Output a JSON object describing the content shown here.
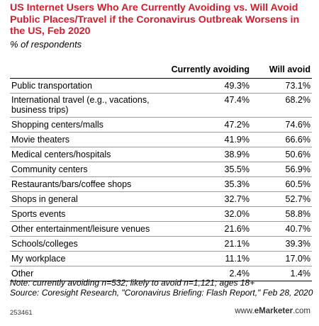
{
  "chart_data": {
    "type": "table",
    "title": "US Internet Users Who Are Currently Avoiding vs. Will Avoid Public Places/Travel if the Coronavirus Outbreak Worsens in the US, Feb 2020",
    "subtitle": "% of respondents",
    "columns": [
      "Currently avoiding",
      "Will avoid"
    ],
    "rows": [
      {
        "label": "Public transportation",
        "values": [
          "49.3%",
          "73.1%"
        ]
      },
      {
        "label": "International travel (e.g., vacations, business trips)",
        "values": [
          "47.4%",
          "68.2%"
        ]
      },
      {
        "label": "Shopping centers/malls",
        "values": [
          "47.2%",
          "74.6%"
        ]
      },
      {
        "label": "Movie theaters",
        "values": [
          "41.9%",
          "66.6%"
        ]
      },
      {
        "label": "Medical centers/hospitals",
        "values": [
          "38.9%",
          "50.6%"
        ]
      },
      {
        "label": "Community centers",
        "values": [
          "35.5%",
          "56.9%"
        ]
      },
      {
        "label": "Restaurants/bars/coffee shops",
        "values": [
          "35.3%",
          "60.5%"
        ]
      },
      {
        "label": "Shops in general",
        "values": [
          "32.7%",
          "52.7%"
        ]
      },
      {
        "label": "Sports events",
        "values": [
          "32.0%",
          "58.8%"
        ]
      },
      {
        "label": "Other entertainment/leisure venues",
        "values": [
          "21.6%",
          "40.7%"
        ]
      },
      {
        "label": "Schools/colleges",
        "values": [
          "21.1%",
          "39.3%"
        ]
      },
      {
        "label": "My workplace",
        "values": [
          "11.1%",
          "17.0%"
        ]
      },
      {
        "label": "Other",
        "values": [
          "2.4%",
          "1.4%"
        ]
      }
    ],
    "note": "Note: currently avoiding n=532; likely to avoid n=1,121; ages 18+",
    "source": "Source: Coresight Research, \"Coronavirus Briefing: Flash Report,\" Feb 28, 2020"
  },
  "footer": {
    "chart_id": "253461",
    "brand_prefix": "www.",
    "brand_bold": "eMarketer",
    "brand_suffix": ".com"
  },
  "colors": {
    "title": "#d0202e"
  }
}
